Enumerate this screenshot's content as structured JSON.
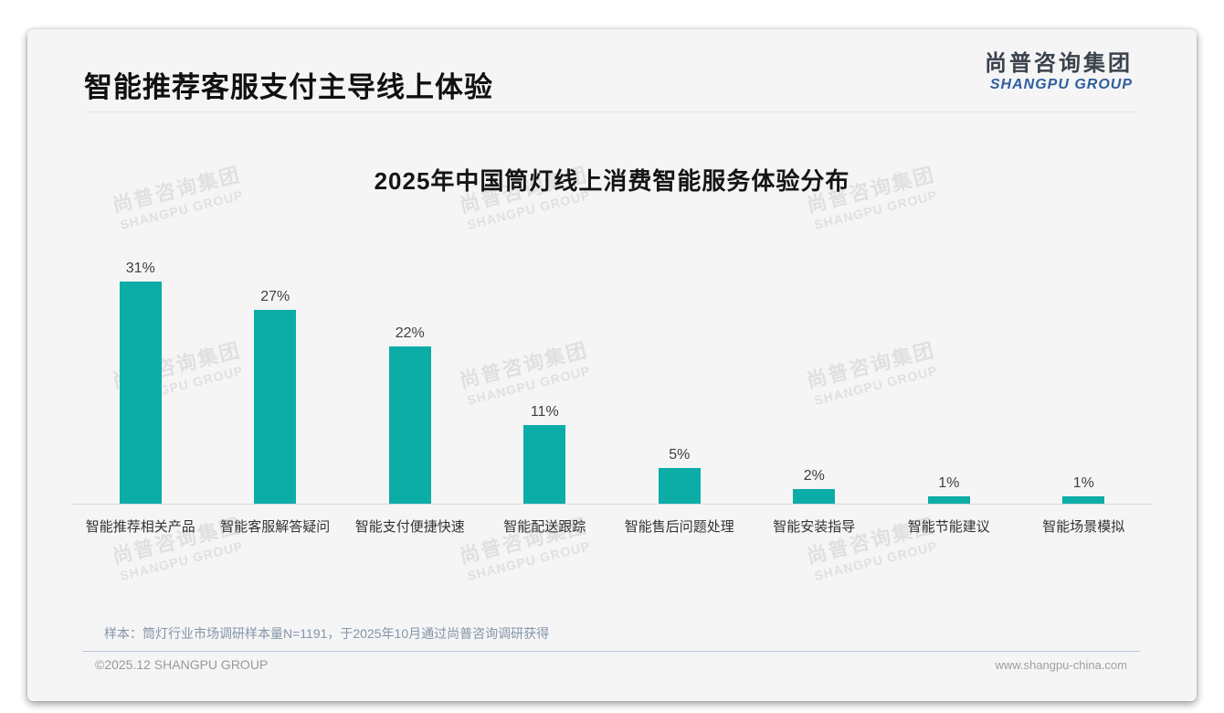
{
  "page": {
    "title": "智能推荐客服支付主导线上体验",
    "logo": {
      "cn": "尚普咨询集团",
      "en": "SHANGPU GROUP"
    },
    "watermark_cn": "尚普咨询集团",
    "watermark_en": "SHANGPU GROUP",
    "footnote": "样本：筒灯行业市场调研样本量N=1191，于2025年10月通过尚普咨询调研获得",
    "copyright": "©2025.12 SHANGPU GROUP",
    "website": "www.shangpu-china.com"
  },
  "chart_data": {
    "type": "bar",
    "title": "2025年中国筒灯线上消费智能服务体验分布",
    "categories": [
      "智能推荐相关产品",
      "智能客服解答疑问",
      "智能支付便捷快速",
      "智能配送跟踪",
      "智能售后问题处理",
      "智能安装指导",
      "智能节能建议",
      "智能场景模拟"
    ],
    "values": [
      31,
      27,
      22,
      11,
      5,
      2,
      1,
      1
    ],
    "unit": "%",
    "value_labels": [
      "31%",
      "27%",
      "22%",
      "11%",
      "5%",
      "2%",
      "1%",
      "1%"
    ],
    "bar_color": "#0caca7",
    "axis_line_color": "#d9d9d9",
    "xlabel": "",
    "ylabel": "",
    "ylim": [
      0,
      33
    ],
    "grid": false,
    "legend_position": "none"
  },
  "colors": {
    "bar": "#0caca7",
    "logo_blue": "#2d5f9e",
    "footnote_text": "#8494a8",
    "footer_divider": "#b9c6d6",
    "card_background": "#f5f5f6"
  }
}
